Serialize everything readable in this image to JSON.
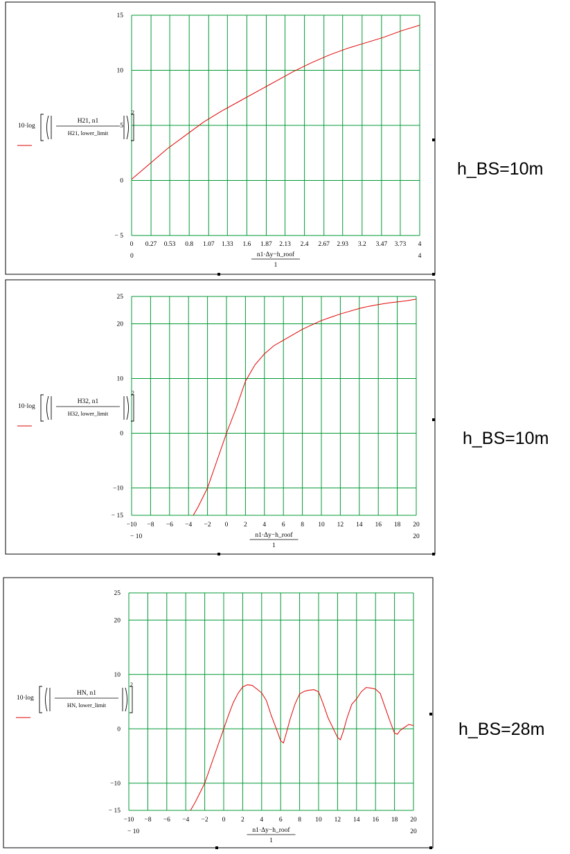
{
  "xaxis_label": {
    "top": "n1·Δy−h_roof",
    "bottom": "1"
  },
  "chart_data": [
    {
      "type": "line",
      "xlim": [
        0,
        4
      ],
      "ylim": [
        -5,
        15
      ],
      "xticks": [
        0,
        0.27,
        0.53,
        0.8,
        1.07,
        1.33,
        1.6,
        1.87,
        2.13,
        2.4,
        2.67,
        2.93,
        3.2,
        3.47,
        3.73,
        4
      ],
      "xtick_labels": [
        "0",
        "0.27",
        "0.53",
        "0.8",
        "1.07",
        "1.33",
        "1.6",
        "1.87",
        "2.13",
        "2.4",
        "2.67",
        "2.93",
        "3.2",
        "3.47",
        "3.73",
        "4"
      ],
      "xlim_labels": [
        "0",
        "4"
      ],
      "yticks": [
        -5,
        0,
        5,
        10,
        15
      ],
      "ytick_labels": [
        "− 5",
        "0",
        "5",
        "10",
        "15"
      ],
      "ylabel": {
        "prefix": "10·log",
        "num": "H21, n1",
        "den": "H21, lower_limit",
        "exp": "2"
      },
      "side_label": "h_BS=10m",
      "series": [
        {
          "color": "#e00000",
          "x": [
            0,
            0.25,
            0.5,
            0.75,
            1,
            1.25,
            1.5,
            1.75,
            2,
            2.25,
            2.5,
            2.75,
            3,
            3.25,
            3.5,
            3.75,
            4
          ],
          "y": [
            0.1,
            1.5,
            2.9,
            4.1,
            5.3,
            6.3,
            7.2,
            8.1,
            9.0,
            9.9,
            10.7,
            11.4,
            12.0,
            12.5,
            13.0,
            13.6,
            14.1
          ]
        }
      ]
    },
    {
      "type": "line",
      "xlim": [
        -10,
        20
      ],
      "ylim": [
        -15,
        25
      ],
      "xticks": [
        -10,
        -8,
        -6,
        -4,
        -2,
        0,
        2,
        4,
        6,
        8,
        10,
        12,
        14,
        16,
        18,
        20
      ],
      "xtick_labels": [
        "−10",
        "−8",
        "−6",
        "−4",
        "−2",
        "0",
        "2",
        "4",
        "6",
        "8",
        "10",
        "12",
        "14",
        "16",
        "18",
        "20"
      ],
      "xlim_labels": [
        "− 10",
        "20"
      ],
      "yticks": [
        -15,
        -10,
        0,
        10,
        20,
        25
      ],
      "ytick_labels": [
        "− 15",
        "−10",
        "0",
        "10",
        "20",
        "25"
      ],
      "ylabel": {
        "prefix": "10·log",
        "num": "H32, n1",
        "den": "H32, lower_limit",
        "exp": "2"
      },
      "side_label": "h_BS=10m",
      "series": [
        {
          "color": "#e00000",
          "x": [
            -3.5,
            -3,
            -2,
            -1,
            0,
            1,
            2,
            3,
            4,
            5,
            6,
            7,
            8,
            9,
            10,
            11,
            12,
            13,
            14,
            15,
            16,
            17,
            18,
            19,
            20
          ],
          "y": [
            -15,
            -13.5,
            -10,
            -5,
            0,
            4.5,
            9.5,
            12.5,
            14.5,
            16,
            17,
            18,
            19,
            19.8,
            20.6,
            21.2,
            21.8,
            22.3,
            22.8,
            23.2,
            23.5,
            23.8,
            24.0,
            24.2,
            24.5
          ]
        }
      ]
    },
    {
      "type": "line",
      "xlim": [
        -10,
        20
      ],
      "ylim": [
        -15,
        25
      ],
      "xticks": [
        -10,
        -8,
        -6,
        -4,
        -2,
        0,
        2,
        4,
        6,
        8,
        10,
        12,
        14,
        16,
        18,
        20
      ],
      "xtick_labels": [
        "−10",
        "−8",
        "−6",
        "−4",
        "−2",
        "0",
        "2",
        "4",
        "6",
        "8",
        "10",
        "12",
        "14",
        "16",
        "18",
        "20"
      ],
      "xlim_labels": [
        "− 10",
        "20"
      ],
      "yticks": [
        -15,
        -10,
        0,
        10,
        20,
        25
      ],
      "ytick_labels": [
        "− 15",
        "−10",
        "0",
        "10",
        "20",
        "25"
      ],
      "ylabel": {
        "prefix": "10·log",
        "num": "HN, n1",
        "den": "HN, lower_limit",
        "exp": "2"
      },
      "side_label": "h_BS=28m",
      "series": [
        {
          "color": "#e00000",
          "x": [
            -3.5,
            -3,
            -2,
            -1,
            0,
            0.5,
            1,
            1.5,
            2,
            2.5,
            3,
            3.5,
            4,
            4.5,
            5,
            5.5,
            6,
            6.3,
            6.6,
            7,
            7.5,
            8,
            8.5,
            9,
            9.5,
            10,
            10.5,
            11,
            11.5,
            12,
            12.3,
            12.6,
            13,
            13.5,
            14,
            14.5,
            15,
            15.5,
            16,
            16.5,
            17,
            17.5,
            18,
            18.3,
            18.6,
            19,
            19.5,
            20
          ],
          "y": [
            -15,
            -13.5,
            -10,
            -5,
            0,
            2.5,
            4.8,
            6.5,
            7.7,
            8.1,
            8.0,
            7.3,
            6.6,
            5.2,
            2.5,
            0.2,
            -2.2,
            -2.6,
            -0.8,
            1.8,
            4.5,
            6.4,
            6.9,
            7.1,
            7.2,
            6.8,
            4.5,
            2.0,
            0.2,
            -1.6,
            -2.0,
            -0.5,
            2.0,
            4.5,
            5.5,
            6.8,
            7.6,
            7.5,
            7.3,
            6.5,
            4.0,
            1.5,
            -0.8,
            -1.0,
            -0.3,
            0.2,
            0.8,
            0.6
          ]
        }
      ]
    }
  ]
}
